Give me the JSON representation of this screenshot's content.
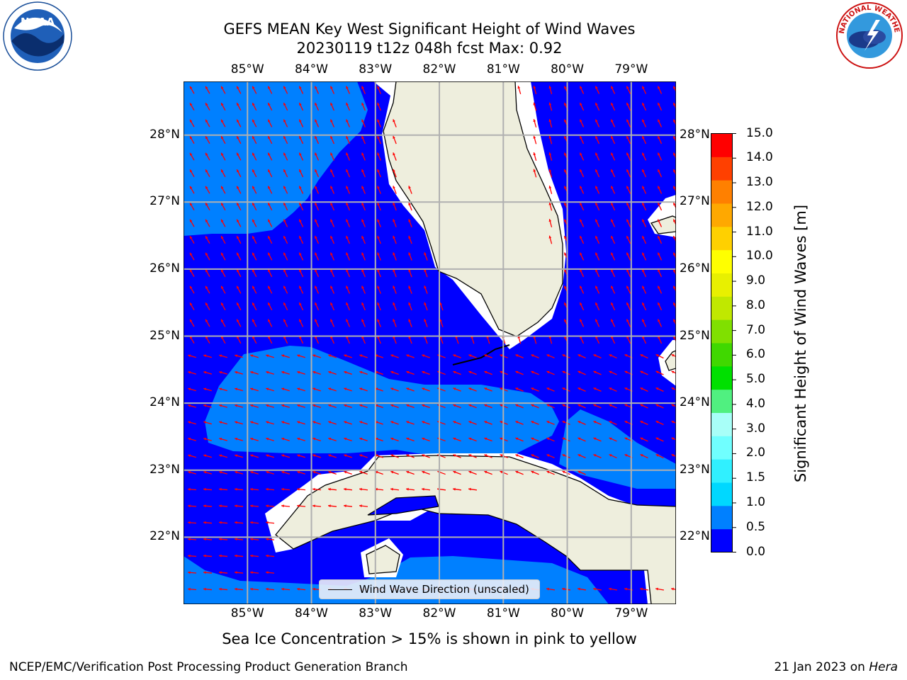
{
  "title": {
    "line1": "GEFS MEAN Key West Significant Height of Wind Waves",
    "line2": "20230119 t12z 048h fcst   Max: 0.92"
  },
  "logos": {
    "noaa": "NOAA",
    "nws_ring": "NATIONAL WEATHER SERVICE"
  },
  "map": {
    "lon_labels": [
      "85°W",
      "84°W",
      "83°W",
      "82°W",
      "81°W",
      "80°W",
      "79°W"
    ],
    "lat_labels": [
      "28°N",
      "27°N",
      "26°N",
      "25°N",
      "24°N",
      "23°N",
      "22°N"
    ],
    "lon_range": [
      -86.0,
      -78.3
    ],
    "lat_range": [
      21.0,
      28.8
    ],
    "colors": {
      "ocean_deep": "#0000ff",
      "ocean_shallow": "#0080ff",
      "land": "#eeeedd",
      "arrows": "#ff0000",
      "grid": "#b0b0b0"
    },
    "legend_text": "Wind Wave Direction (unscaled)"
  },
  "colorbar": {
    "label": "Significant Height of Wind Waves [m]",
    "ticks": [
      "0.0",
      "0.5",
      "1.0",
      "1.5",
      "2.0",
      "3.0",
      "4.0",
      "5.0",
      "6.0",
      "7.0",
      "8.0",
      "9.0",
      "10.0",
      "11.0",
      "12.0",
      "13.0",
      "14.0",
      "15.0"
    ],
    "colors": [
      "#0000ff",
      "#0080ff",
      "#00d8ff",
      "#30f0ff",
      "#70ffff",
      "#a8fff8",
      "#50f080",
      "#00e000",
      "#40d800",
      "#80e000",
      "#c0e800",
      "#e8f000",
      "#ffff00",
      "#ffd000",
      "#ffa800",
      "#ff8000",
      "#ff4000",
      "#ff0000"
    ]
  },
  "notes": {
    "sea_ice": "Sea Ice Concentration > 15% is shown in pink to yellow",
    "footer_left": "NCEP/EMC/Verification Post Processing Product Generation Branch",
    "footer_right_date": "21 Jan 2023 on ",
    "footer_right_host": "Hera"
  }
}
